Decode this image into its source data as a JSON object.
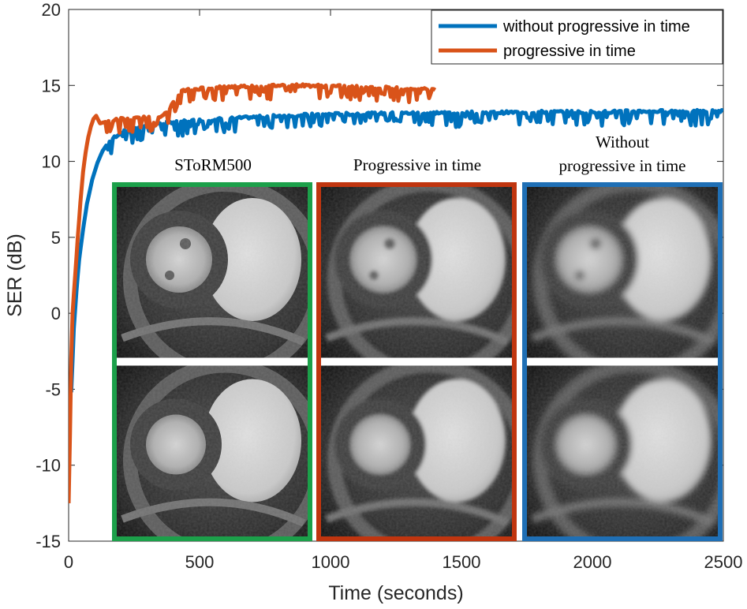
{
  "chart_data": {
    "type": "line",
    "title": "",
    "xlabel": "Time (seconds)",
    "ylabel": "SER (dB)",
    "xlim": [
      0,
      2500
    ],
    "ylim": [
      -15,
      20
    ],
    "xticks": [
      0,
      500,
      1000,
      1500,
      2000,
      2500
    ],
    "yticks": [
      -15,
      -10,
      -5,
      0,
      5,
      10,
      15,
      20
    ],
    "legend_position": "top-right",
    "series": [
      {
        "name": "without progressive in time",
        "color": "#0072BD",
        "x": [
          10,
          20,
          30,
          40,
          55,
          70,
          90,
          110,
          130,
          150,
          175,
          200,
          250,
          300,
          350,
          400,
          500,
          600,
          700,
          800,
          900,
          1000,
          1200,
          1400,
          1600,
          1800,
          2000,
          2200,
          2400,
          2500
        ],
        "y": [
          -5.2,
          -1.0,
          1.5,
          3.5,
          5.5,
          7.2,
          8.8,
          9.9,
          10.7,
          11.2,
          11.6,
          11.9,
          12.2,
          12.4,
          12.5,
          12.6,
          12.7,
          12.8,
          12.9,
          13.0,
          13.05,
          13.1,
          13.15,
          13.2,
          13.2,
          13.25,
          13.25,
          13.3,
          13.3,
          13.3
        ]
      },
      {
        "name": "progressive in time",
        "color": "#D95319",
        "x": [
          0,
          5,
          10,
          15,
          25,
          35,
          45,
          55,
          65,
          75,
          85,
          95,
          105,
          120,
          140,
          170,
          200,
          250,
          300,
          350,
          380,
          400,
          420,
          500,
          600,
          700,
          800,
          900,
          1000,
          1100,
          1200,
          1300,
          1400
        ],
        "y": [
          -12.5,
          -8.0,
          -3.0,
          0.0,
          2.5,
          5.0,
          7.3,
          9.3,
          10.6,
          11.6,
          12.3,
          12.8,
          13.0,
          12.5,
          12.6,
          12.7,
          12.8,
          12.8,
          12.9,
          13.0,
          13.2,
          14.0,
          14.6,
          14.8,
          14.9,
          14.95,
          15.0,
          15.0,
          14.95,
          14.9,
          14.85,
          14.8,
          14.7
        ]
      }
    ],
    "insets": [
      {
        "title_lines": [
          "SToRM500"
        ],
        "border_color": "#1CA04A"
      },
      {
        "title_lines": [
          "Progressive in time"
        ],
        "border_color": "#C0350F"
      },
      {
        "title_lines": [
          "Without",
          "progressive in time"
        ],
        "border_color": "#1F6FB5"
      }
    ]
  }
}
